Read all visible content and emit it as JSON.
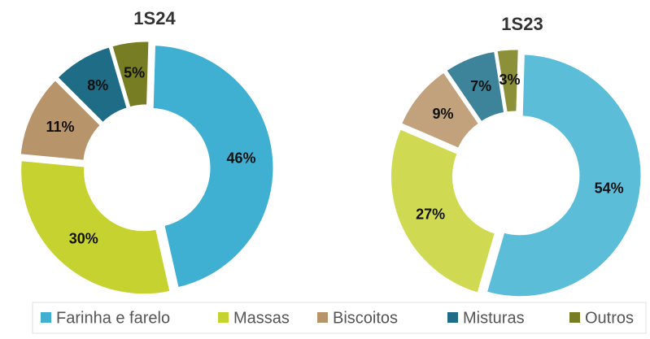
{
  "chart_data": [
    {
      "type": "pie",
      "title": "1S24",
      "categories": [
        "Farinha e farelo",
        "Massas",
        "Biscoitos",
        "Misturas",
        "Outros"
      ],
      "values": [
        46,
        30,
        11,
        8,
        5
      ],
      "value_labels": [
        "46%",
        "30%",
        "11%",
        "8%",
        "5%"
      ],
      "colors": [
        "#3fb0d2",
        "#c6d22f",
        "#b8946a",
        "#1e6c85",
        "#777d22"
      ],
      "legend": "bottom"
    },
    {
      "type": "pie",
      "title": "1S23",
      "categories": [
        "Farinha e farelo",
        "Massas",
        "Biscoitos",
        "Misturas",
        "Outros"
      ],
      "values": [
        54,
        27,
        9,
        7,
        3
      ],
      "value_labels": [
        "54%",
        "27%",
        "9%",
        "7%",
        "3%"
      ],
      "colors": [
        "#5cbdd8",
        "#cfda52",
        "#c2a27c",
        "#3d8399",
        "#8b9039"
      ]
    }
  ]
}
